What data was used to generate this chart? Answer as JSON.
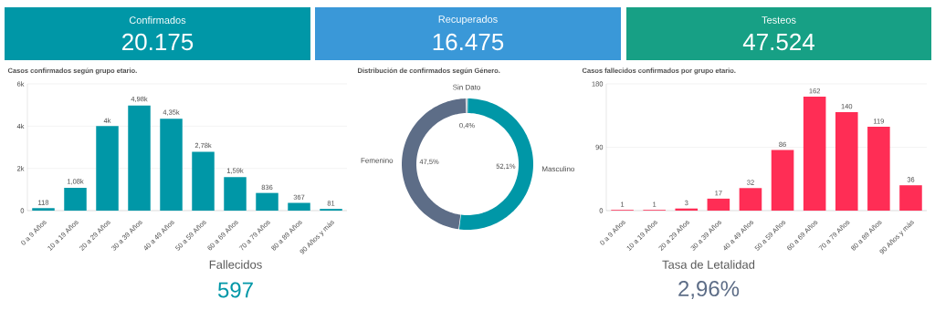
{
  "chart_data": [
    {
      "type": "other",
      "title": "Confirmados",
      "annotations": [
        "20.175"
      ],
      "colors": [
        "#0097a7",
        "#ffffff"
      ]
    },
    {
      "type": "other",
      "title": "Recuperados",
      "annotations": [
        "16.475"
      ],
      "colors": [
        "#3a98d8",
        "#ffffff"
      ]
    },
    {
      "type": "other",
      "title": "Testeos",
      "annotations": [
        "47.524"
      ],
      "colors": [
        "#17a085",
        "#ffffff"
      ]
    },
    {
      "type": "bar",
      "title": "Casos confirmados según grupo etario.",
      "categories": [
        "0 a 9 Años",
        "10 a 19 Años",
        "20 a 29 Años",
        "30 a 39 Años",
        "40 a 49 Años",
        "50 a 59 Años",
        "60 a 69 Años",
        "70 a 79 Años",
        "80 a 89 Años",
        "90 Años y más"
      ],
      "values": [
        118,
        1080,
        4000,
        4980,
        4350,
        2780,
        1590,
        836,
        367,
        81
      ],
      "value_labels": [
        "118",
        "1,08k",
        "4k",
        "4,98k",
        "4,35k",
        "2,78k",
        "1,59k",
        "836",
        "367",
        "81"
      ],
      "color": "#0097a7",
      "ylim": [
        0,
        6000
      ],
      "yticks": [
        {
          "value": 0,
          "label": "0"
        },
        {
          "value": 2000,
          "label": "2k"
        },
        {
          "value": 4000,
          "label": "4k"
        },
        {
          "value": 6000,
          "label": "6k"
        }
      ],
      "grid": "y"
    },
    {
      "type": "donut",
      "title": "Distribución de confirmados según Género.",
      "categories": [
        "Masculino",
        "Femenino",
        "Sin Dato"
      ],
      "values": [
        52.1,
        47.5,
        0.4
      ],
      "value_labels": [
        "52,1%",
        "47,5%",
        "0,4%"
      ],
      "colors": [
        "#0097a7",
        "#5d6d87",
        "#a0a8b4"
      ]
    },
    {
      "type": "bar",
      "title": "Casos fallecidos confirmados por grupo etario.",
      "categories": [
        "0 a 9 Años",
        "10 a 19 Años",
        "20 a 29 Años",
        "30 a 39 Años",
        "40 a 49 Años",
        "50 a 59 Años",
        "60 a 69 Años",
        "70 a 79 Años",
        "80 a 89 Años",
        "90 Años y más"
      ],
      "values": [
        1,
        1,
        3,
        17,
        32,
        86,
        162,
        140,
        119,
        36
      ],
      "data_labels": true,
      "color": "#ff2d55",
      "ylim": [
        0,
        180
      ],
      "yticks": [
        0,
        90,
        180
      ],
      "grid": "y"
    },
    {
      "type": "other",
      "title": "Fallecidos",
      "annotations": [
        "597"
      ],
      "color": "#0097a7"
    },
    {
      "type": "other",
      "title": "Tasa de Letalidad",
      "annotations": [
        "2,96%"
      ],
      "color": "#5d6d87"
    }
  ]
}
